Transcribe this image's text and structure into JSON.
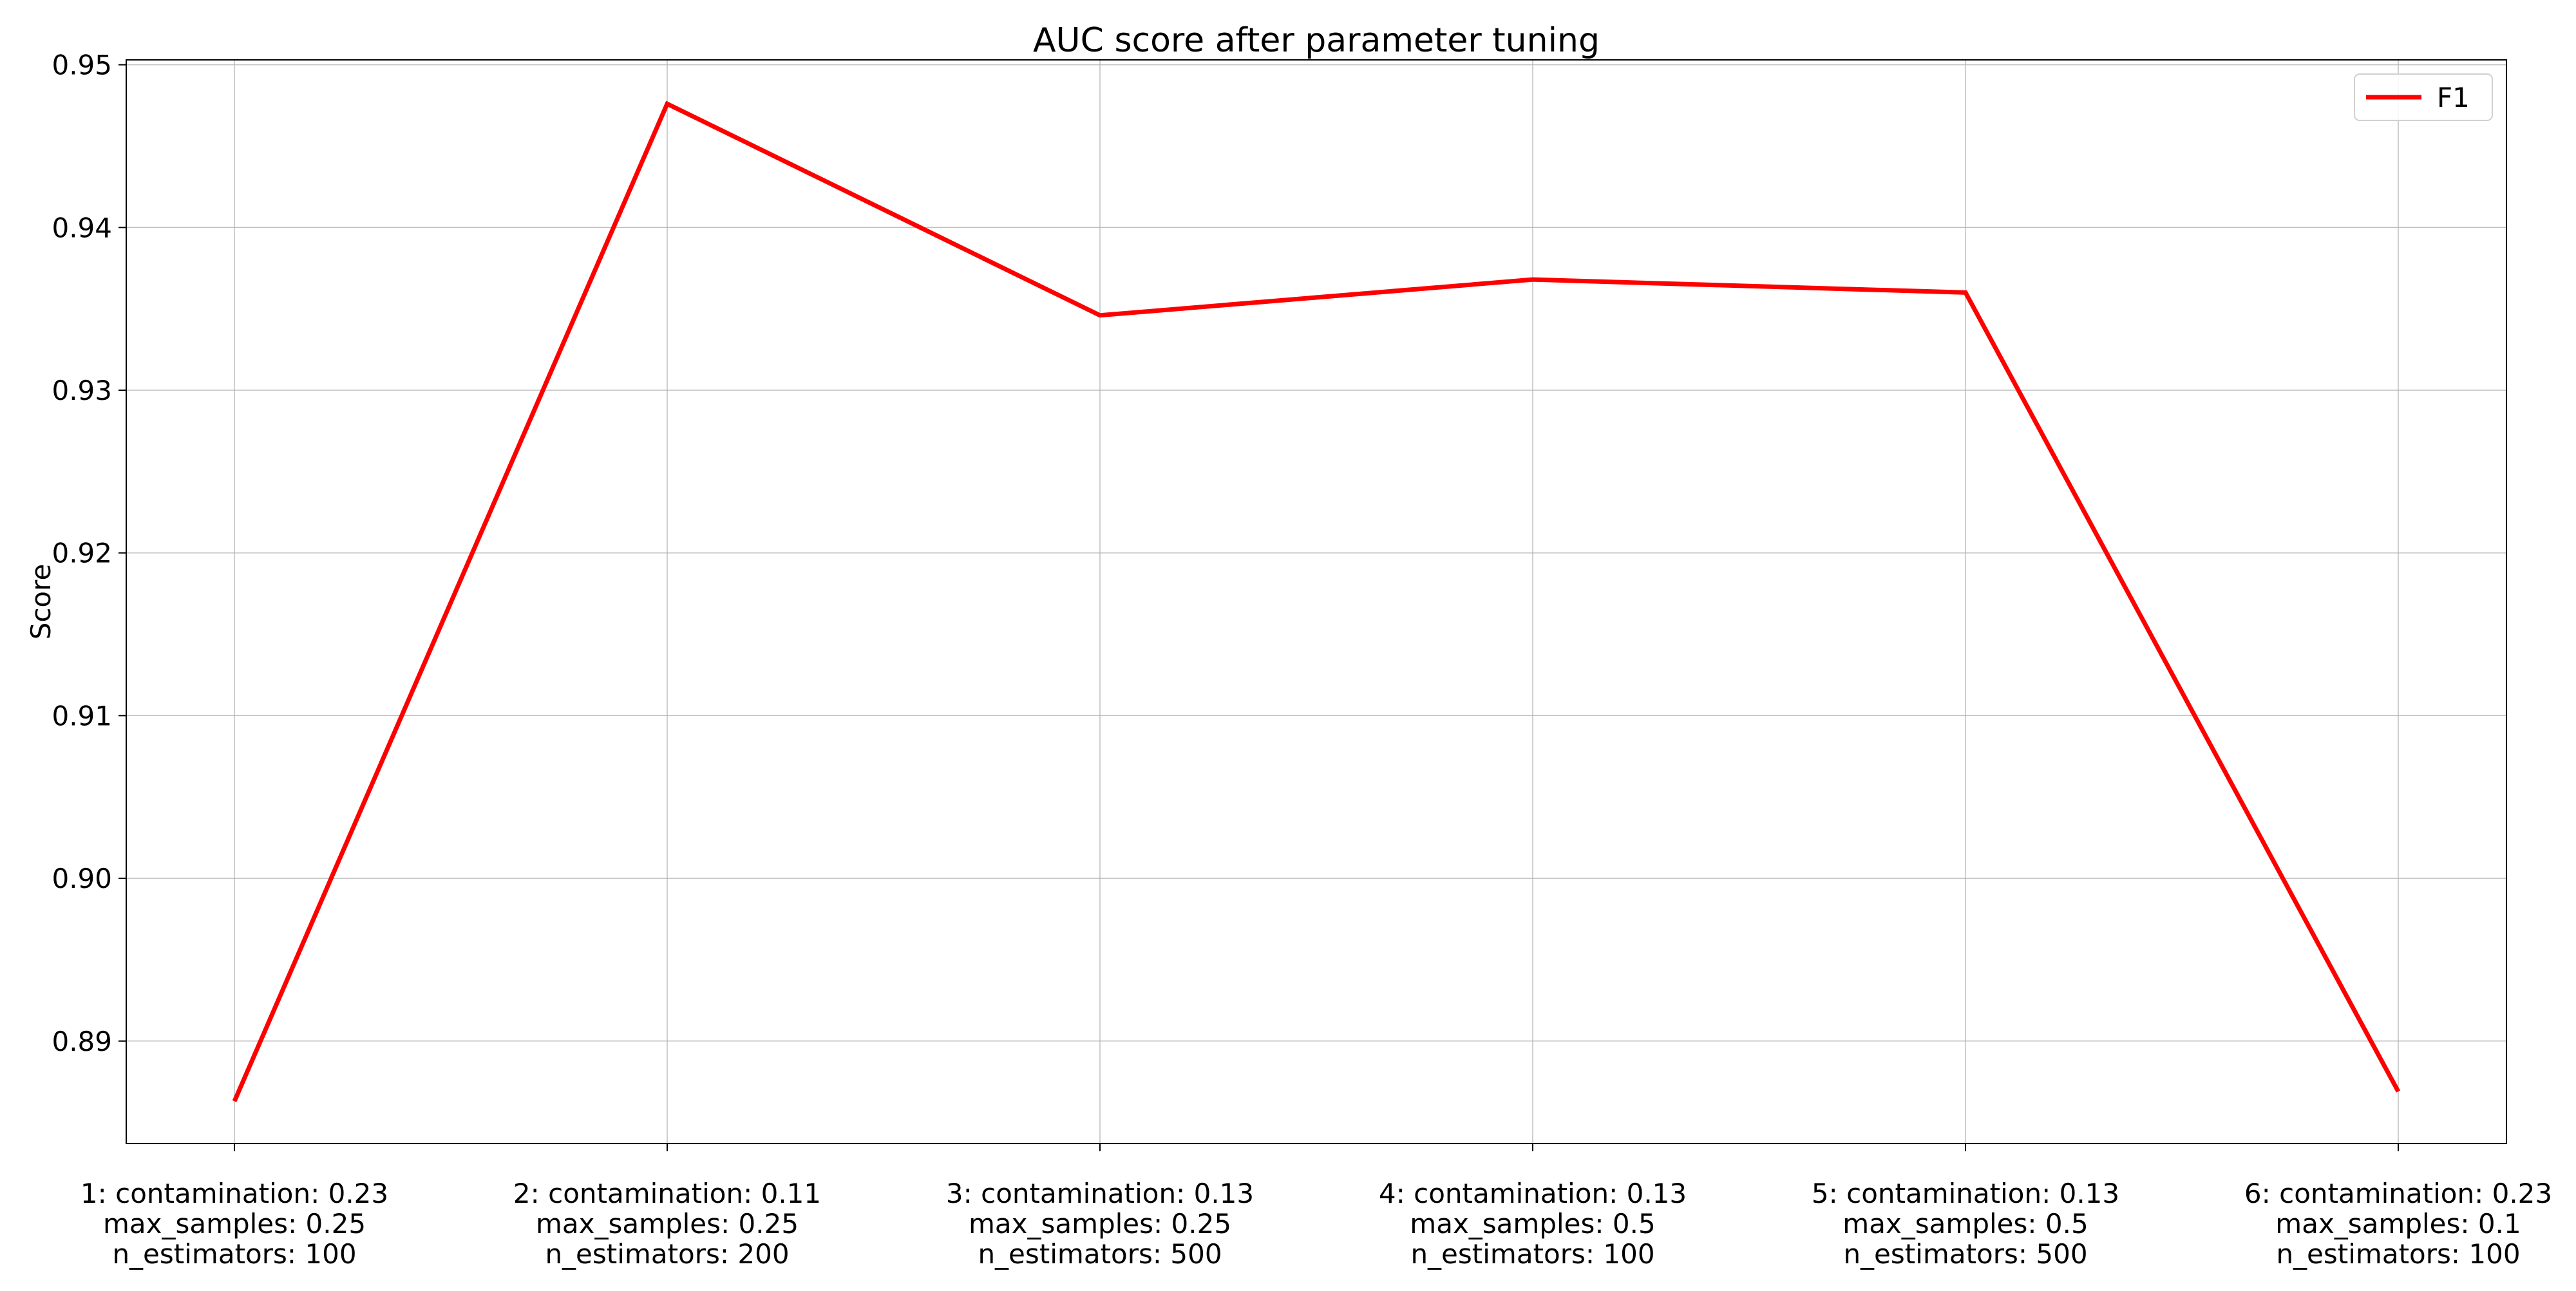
{
  "chart_data": {
    "type": "line",
    "title": "AUC score after parameter tuning",
    "xlabel": "",
    "ylabel": "Score",
    "categories": [
      [
        "1: contamination: 0.23",
        "max_samples: 0.25",
        "n_estimators: 100"
      ],
      [
        "2: contamination: 0.11",
        "max_samples: 0.25",
        "n_estimators: 200"
      ],
      [
        "3: contamination: 0.13",
        "max_samples: 0.25",
        "n_estimators: 500"
      ],
      [
        "4: contamination: 0.13",
        "max_samples: 0.5",
        "n_estimators: 100"
      ],
      [
        "5: contamination: 0.13",
        "max_samples: 0.5",
        "n_estimators: 500"
      ],
      [
        "6: contamination: 0.23",
        "max_samples: 0.1",
        "n_estimators: 100"
      ]
    ],
    "series": [
      {
        "name": "F1",
        "color": "#ff0000",
        "values": [
          0.8863,
          0.9476,
          0.9346,
          0.9368,
          0.936,
          0.8869
        ]
      }
    ],
    "ylim": [
      0.8837,
      0.9503
    ],
    "yticks": [
      "0.89",
      "0.90",
      "0.91",
      "0.92",
      "0.93",
      "0.94",
      "0.95"
    ],
    "grid": true,
    "legend_position": "top-right"
  }
}
